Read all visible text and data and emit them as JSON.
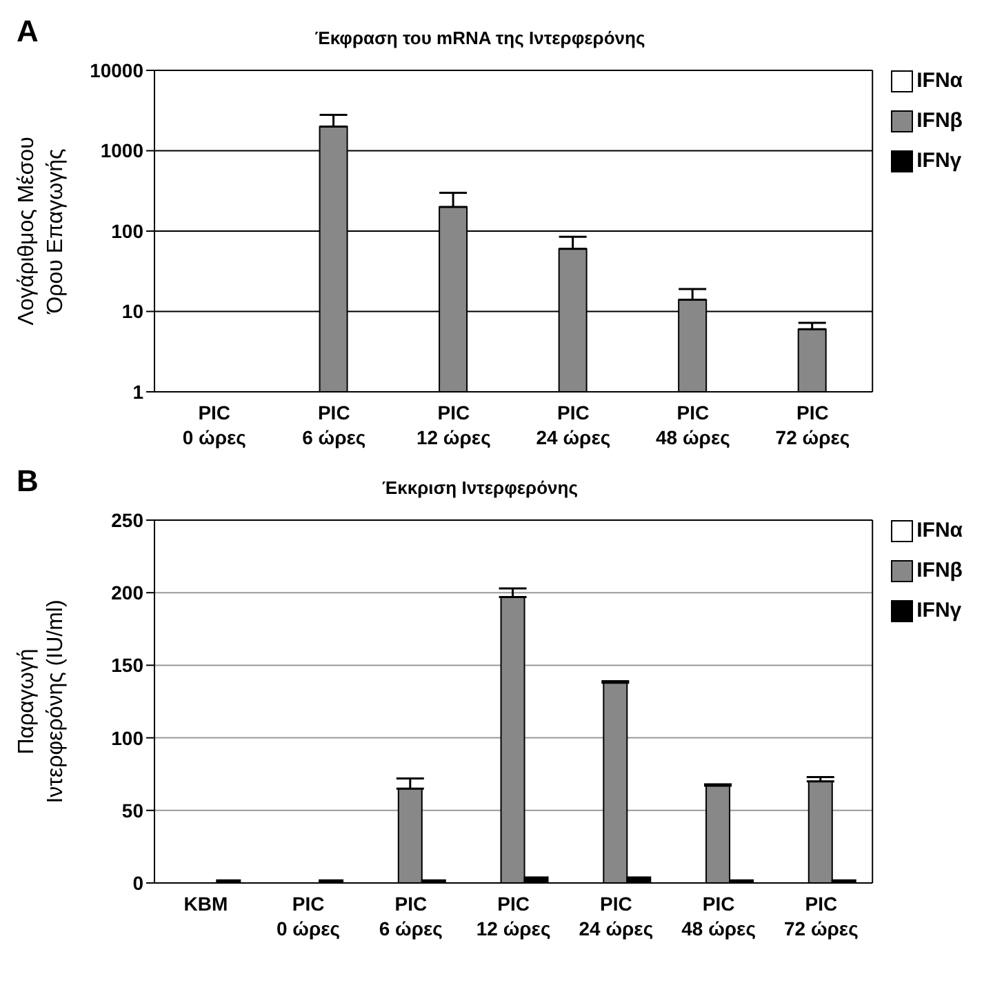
{
  "chart_data": [
    {
      "type": "bar",
      "title": "Έκφραση του mRNA της Ιντερφερόνης",
      "ylabel": "Λογάριθμος  Μέσου\nΌρου Επαγωγής",
      "annotations": [
        "A"
      ],
      "categories": [
        "PIC\n0 ώρες",
        "PIC\n6 ώρες",
        "PIC\n12 ώρες",
        "PIC\n24 ώρες",
        "PIC\n48 ώρες",
        "PIC\n72 ώρες"
      ],
      "series": [
        {
          "name": "IFNα",
          "color": "#ffffff",
          "values": [
            null,
            null,
            null,
            null,
            null,
            null
          ]
        },
        {
          "name": "IFNβ",
          "color": "#888888",
          "values": [
            null,
            2000,
            200,
            60,
            14,
            6
          ],
          "errors": [
            null,
            [
              2000,
              2800
            ],
            [
              200,
              300
            ],
            [
              60,
              85
            ],
            [
              14,
              19
            ],
            [
              6,
              7.2
            ]
          ]
        },
        {
          "name": "IFNγ",
          "color": "#000000",
          "values": [
            null,
            null,
            null,
            null,
            null,
            null
          ]
        }
      ],
      "log": true,
      "ylim": [
        1,
        10000
      ],
      "yticks": [
        1,
        10,
        100,
        1000,
        10000
      ],
      "grid": "y",
      "legend": "top right"
    },
    {
      "type": "bar",
      "title": "Έκκριση Ιντερφερόνης",
      "ylabel": "Παραγωγή\nΙντερφερόνης (IU/ml)",
      "annotations": [
        "B"
      ],
      "categories": [
        "KBM",
        "PIC\n0 ώρες",
        "PIC\n6 ώρες",
        "PIC\n12 ώρες",
        "PIC\n24 ώρες",
        "PIC\n48 ώρες",
        "PIC\n72 ώρες"
      ],
      "series": [
        {
          "name": "IFNα",
          "color": "#ffffff",
          "values": [
            null,
            null,
            null,
            null,
            null,
            null,
            null
          ]
        },
        {
          "name": "IFNβ",
          "color": "#888888",
          "values": [
            null,
            null,
            65,
            197,
            138,
            67,
            70
          ],
          "errors": [
            null,
            null,
            [
              65,
              72
            ],
            [
              197,
              203
            ],
            [
              138,
              139
            ],
            [
              67,
              68
            ],
            [
              70,
              73
            ]
          ]
        },
        {
          "name": "IFNγ",
          "color": "#000000",
          "values": [
            2,
            2,
            2,
            4,
            4,
            2,
            2
          ]
        }
      ],
      "ylim": [
        0,
        250
      ],
      "yticks": [
        0,
        50,
        100,
        150,
        200,
        250
      ],
      "grid": "y",
      "legend": "top right"
    }
  ]
}
